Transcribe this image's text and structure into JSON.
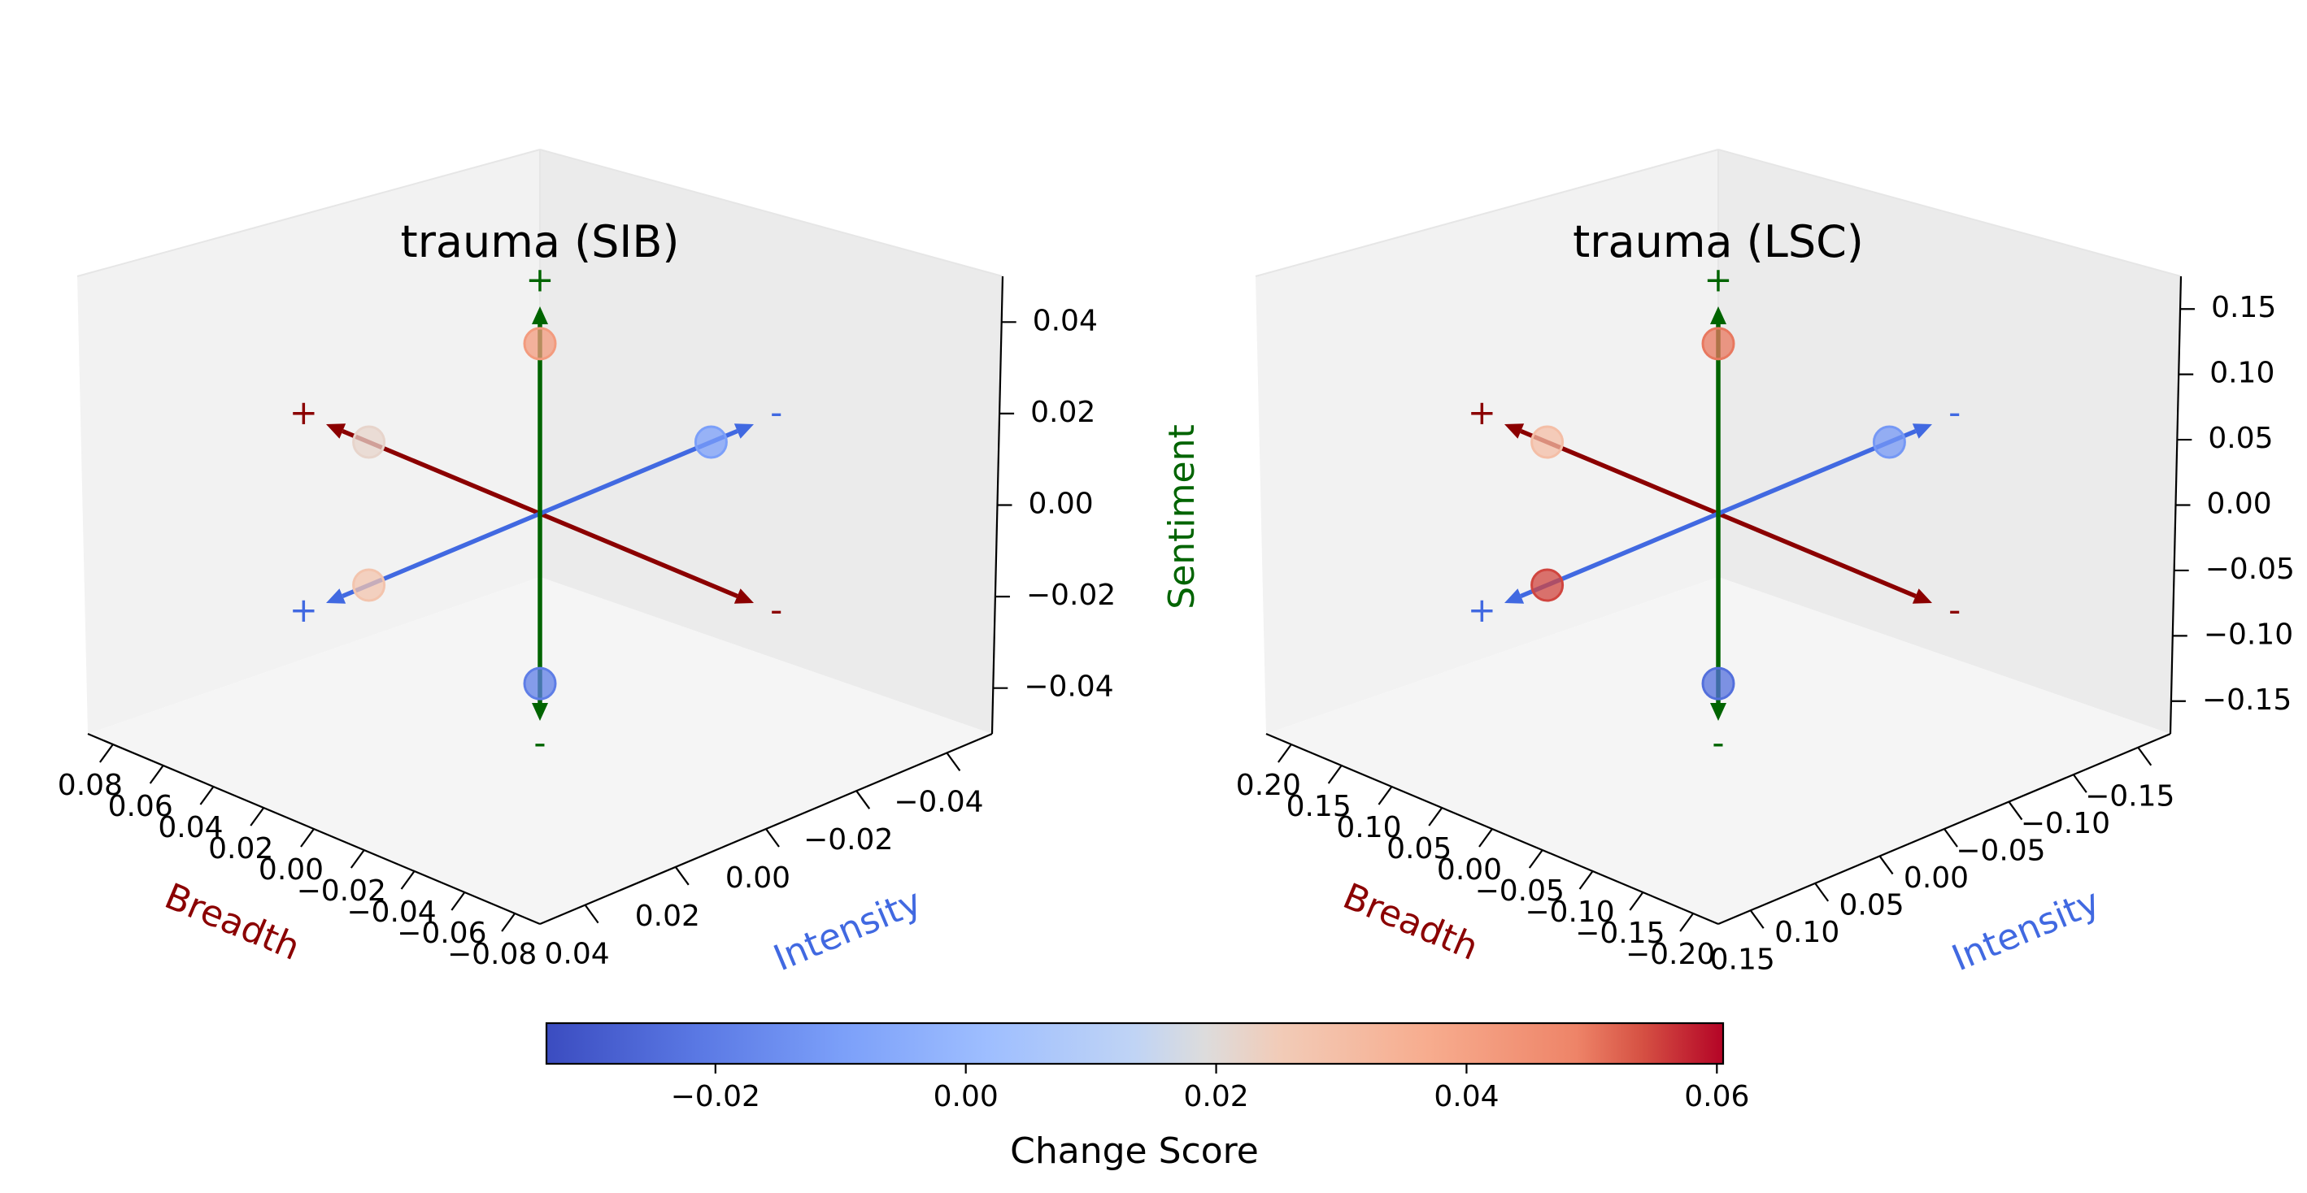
{
  "chart_data": [
    {
      "type": "scatter",
      "title": "trauma (SIB)",
      "axes": {
        "breadth": {
          "label": "Breadth",
          "range": [
            -0.08,
            0.08
          ],
          "ticks": [
            "0.08",
            "0.06",
            "0.04",
            "0.02",
            "0.00",
            "−0.02",
            "−0.04",
            "−0.06",
            "−0.08"
          ]
        },
        "intensity": {
          "label": "Intensity",
          "range": [
            -0.05,
            0.05
          ],
          "ticks": [
            "−0.04",
            "−0.02",
            "0.00",
            "0.02",
            "0.04"
          ]
        },
        "sentiment": {
          "label": "",
          "range": [
            -0.055,
            0.055
          ],
          "ticks": [
            "0.04",
            "0.02",
            "0.00",
            "−0.02",
            "−0.04"
          ]
        }
      },
      "arrow_signs": {
        "breadth": {
          "pos": "+",
          "neg": "-"
        },
        "intensity": {
          "pos": "+",
          "neg": "-"
        },
        "sentiment": {
          "pos": "+",
          "neg": "-"
        }
      },
      "points": [
        {
          "axis": "sentiment",
          "sign": "+",
          "change_score": 0.042
        },
        {
          "axis": "sentiment",
          "sign": "-",
          "change_score": -0.02
        },
        {
          "axis": "breadth",
          "sign": "+",
          "change_score": 0.022
        },
        {
          "axis": "breadth",
          "sign": "-",
          "change_score": null
        },
        {
          "axis": "intensity",
          "sign": "+",
          "change_score": 0.028
        },
        {
          "axis": "intensity",
          "sign": "-",
          "change_score": -0.01
        }
      ],
      "grid": false
    },
    {
      "type": "scatter",
      "title": "trauma (LSC)",
      "axes": {
        "breadth": {
          "label": "Breadth",
          "range": [
            -0.2,
            0.2
          ],
          "ticks": [
            "0.20",
            "0.15",
            "0.10",
            "0.05",
            "0.00",
            "−0.05",
            "−0.10",
            "−0.15",
            "−0.20"
          ]
        },
        "intensity": {
          "label": "Intensity",
          "range": [
            -0.17,
            0.17
          ],
          "ticks": [
            "−0.15",
            "−0.10",
            "−0.05",
            "0.00",
            "0.05",
            "0.10",
            "0.15"
          ]
        },
        "sentiment": {
          "label": "Sentiment",
          "range": [
            -0.175,
            0.175
          ],
          "ticks": [
            "0.15",
            "0.10",
            "0.05",
            "0.00",
            "−0.05",
            "−0.10",
            "−0.15"
          ]
        }
      },
      "arrow_signs": {
        "breadth": {
          "pos": "+",
          "neg": "-"
        },
        "intensity": {
          "pos": "+",
          "neg": "-"
        },
        "sentiment": {
          "pos": "+",
          "neg": "-"
        }
      },
      "points": [
        {
          "axis": "sentiment",
          "sign": "+",
          "change_score": 0.05
        },
        {
          "axis": "sentiment",
          "sign": "-",
          "change_score": -0.024
        },
        {
          "axis": "breadth",
          "sign": "+",
          "change_score": 0.03
        },
        {
          "axis": "breadth",
          "sign": "-",
          "change_score": null
        },
        {
          "axis": "intensity",
          "sign": "+",
          "change_score": 0.055
        },
        {
          "axis": "intensity",
          "sign": "-",
          "change_score": -0.012
        }
      ],
      "grid": false
    }
  ],
  "colorbar": {
    "label": "Change Score",
    "range": [
      -0.0335,
      0.0605
    ],
    "ticks": [
      "−0.02",
      "0.00",
      "0.02",
      "0.04",
      "0.06"
    ],
    "tick_values": [
      -0.02,
      0.0,
      0.02,
      0.04,
      0.06
    ],
    "colormap": "coolwarm"
  },
  "colors": {
    "breadth": "#8b0000",
    "intensity": "#4169e1",
    "sentiment": "#006400"
  }
}
